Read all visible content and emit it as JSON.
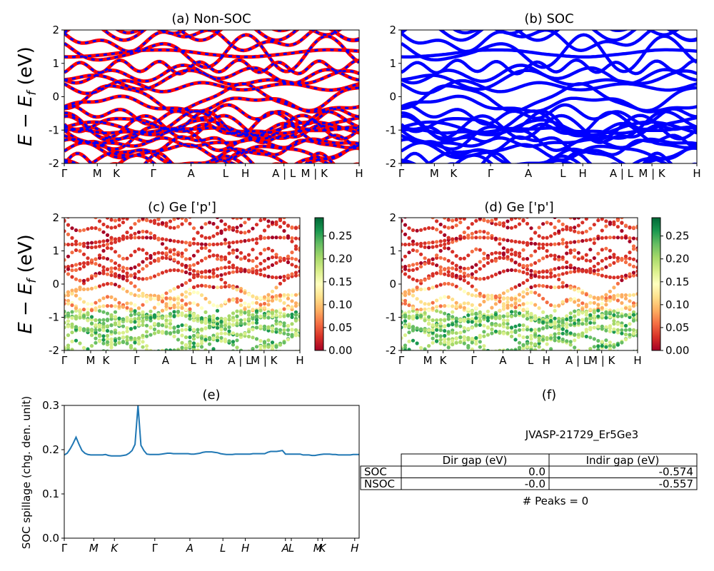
{
  "figure": {
    "ylabel_main": "E − E",
    "ylabel_sub": "f",
    "ylabel_unit": " (eV)",
    "kpath_labels": [
      "Γ",
      "M",
      "K",
      "Γ",
      "A",
      "L",
      "H",
      "A | L",
      "M | K",
      "H"
    ],
    "kpath_labels_c": [
      "Γ",
      "M",
      "K",
      "Γ",
      "A",
      "L",
      "H",
      "A | L",
      "M | K",
      "H"
    ],
    "kpath_labels_e": [
      "Γ",
      "M",
      "K",
      "Γ",
      "A",
      "L",
      "H",
      "A",
      "L",
      "M",
      "K",
      "H"
    ]
  },
  "chart_data": [
    {
      "id": "a",
      "type": "line",
      "title": "(a) Non-SOC",
      "ylim": [
        -2,
        2
      ],
      "yticks": [
        -2,
        -1,
        0,
        1,
        2
      ],
      "series_colors": [
        "#ff0000",
        "#0000ff"
      ],
      "note": "band structure, red = spin up, blue dashed = spin down"
    },
    {
      "id": "b",
      "type": "line",
      "title": "(b) SOC",
      "ylim": [
        -2,
        2
      ],
      "yticks": [
        -2,
        -1,
        0,
        1,
        2
      ],
      "series_colors": [
        "#0000ff"
      ]
    },
    {
      "id": "c",
      "type": "scatter",
      "title": "(c)  Ge ['p']",
      "ylim": [
        -2,
        2
      ],
      "yticks": [
        -2,
        -1,
        0,
        1,
        2
      ],
      "colorbar": {
        "min": 0.0,
        "max": 0.29,
        "ticks": [
          "0.00",
          "0.05",
          "0.10",
          "0.15",
          "0.20",
          "0.25"
        ],
        "colormap": "RdYlGn"
      }
    },
    {
      "id": "d",
      "type": "scatter",
      "title": "(d) Ge ['p']",
      "ylim": [
        -2,
        2
      ],
      "yticks": [
        -2,
        -1,
        0,
        1,
        2
      ],
      "colorbar": {
        "min": 0.0,
        "max": 0.29,
        "ticks": [
          "0.00",
          "0.05",
          "0.10",
          "0.15",
          "0.20",
          "0.25"
        ],
        "colormap": "RdYlGn"
      }
    },
    {
      "id": "e",
      "type": "line",
      "title": "(e)",
      "ylabel": "SOC spillage (chg. den. unit)",
      "ylim": [
        0.0,
        0.3
      ],
      "yticks": [
        "0.0",
        "0.1",
        "0.2",
        "0.3"
      ],
      "color": "#1f77b4",
      "x": [
        0,
        1,
        2,
        3,
        4,
        5,
        6,
        7,
        8,
        9,
        10,
        11,
        12,
        13,
        14,
        15,
        16,
        17,
        18,
        19,
        20,
        21,
        22,
        23,
        24,
        25,
        26,
        27,
        28,
        29,
        30,
        31,
        32,
        33,
        34,
        35,
        36,
        37,
        38,
        39,
        40,
        41,
        42,
        43,
        44,
        45,
        46,
        47,
        48,
        49,
        50,
        51,
        52,
        53,
        54,
        55,
        56,
        57,
        58,
        59,
        60,
        61,
        62,
        63,
        64,
        65,
        66,
        67,
        68,
        69,
        70,
        71,
        72,
        73,
        74,
        75,
        76,
        77,
        78,
        79,
        80,
        81,
        82,
        83,
        84,
        85,
        86,
        87,
        88,
        89,
        90,
        91,
        92,
        93,
        94,
        95,
        96,
        97,
        98,
        99,
        100
      ],
      "values": [
        0.188,
        0.192,
        0.202,
        0.214,
        0.228,
        0.212,
        0.198,
        0.192,
        0.189,
        0.188,
        0.188,
        0.188,
        0.188,
        0.188,
        0.189,
        0.187,
        0.186,
        0.186,
        0.186,
        0.186,
        0.187,
        0.188,
        0.192,
        0.198,
        0.212,
        0.3,
        0.21,
        0.198,
        0.19,
        0.189,
        0.189,
        0.189,
        0.189,
        0.19,
        0.191,
        0.192,
        0.192,
        0.191,
        0.191,
        0.191,
        0.191,
        0.191,
        0.191,
        0.19,
        0.19,
        0.191,
        0.192,
        0.194,
        0.195,
        0.195,
        0.195,
        0.194,
        0.193,
        0.191,
        0.19,
        0.189,
        0.189,
        0.189,
        0.19,
        0.19,
        0.19,
        0.19,
        0.19,
        0.19,
        0.191,
        0.191,
        0.191,
        0.191,
        0.191,
        0.194,
        0.196,
        0.196,
        0.196,
        0.197,
        0.198,
        0.19,
        0.19,
        0.19,
        0.19,
        0.19,
        0.19,
        0.188,
        0.188,
        0.188,
        0.187,
        0.187,
        0.188,
        0.189,
        0.19,
        0.19,
        0.19,
        0.189,
        0.189,
        0.188,
        0.188,
        0.188,
        0.188,
        0.188,
        0.189,
        0.189,
        0.189
      ]
    },
    {
      "id": "f",
      "type": "table",
      "title": "(f)",
      "caption": "JVASP-21729_Er5Ge3",
      "columns": [
        "Dir gap (eV)",
        "Indir gap (eV)"
      ],
      "rows": [
        {
          "label": "SOC",
          "cells": [
            "0.0",
            "-0.574"
          ]
        },
        {
          "label": "NSOC",
          "cells": [
            "-0.0",
            "-0.557"
          ]
        }
      ],
      "footer": "# Peaks = 0"
    }
  ]
}
